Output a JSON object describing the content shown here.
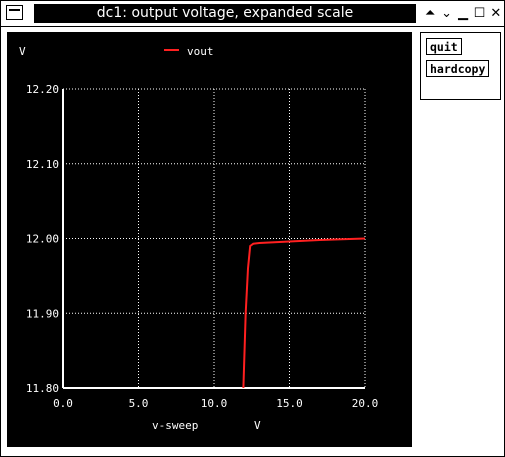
{
  "window": {
    "title": "dc1: output voltage, expanded scale",
    "controls": [
      "⏶",
      "⌄",
      "▁",
      "☐",
      "✕"
    ]
  },
  "side_panel": {
    "quit_label": "quit",
    "hardcopy_label": "hardcopy"
  },
  "colors": {
    "trace": "#ff2020",
    "grid": "#ffffff",
    "background": "#000000",
    "text": "#ffffff"
  },
  "chart_data": {
    "type": "line",
    "ylabel": "V",
    "xlabel": "v-sweep",
    "xunit": "V",
    "xlim": [
      0.0,
      20.0
    ],
    "ylim": [
      11.8,
      12.2
    ],
    "x_ticks": [
      "0.0",
      "5.0",
      "10.0",
      "15.0",
      "20.0"
    ],
    "y_ticks": [
      "12.20",
      "12.10",
      "12.00",
      "11.90",
      "11.80"
    ],
    "x_tick_values": [
      0,
      5,
      10,
      15,
      20
    ],
    "y_tick_values": [
      12.2,
      12.1,
      12.0,
      11.9,
      11.8
    ],
    "grid": true,
    "legend_placement": "top-center",
    "series": [
      {
        "name": "vout",
        "color": "#ff2020",
        "x": [
          11.95,
          12.1,
          12.25,
          12.4,
          12.6,
          13.0,
          14.0,
          15.0,
          17.0,
          20.0
        ],
        "y": [
          11.8,
          11.9,
          11.96,
          11.99,
          11.993,
          11.994,
          11.995,
          11.996,
          11.998,
          12.0
        ]
      }
    ]
  }
}
